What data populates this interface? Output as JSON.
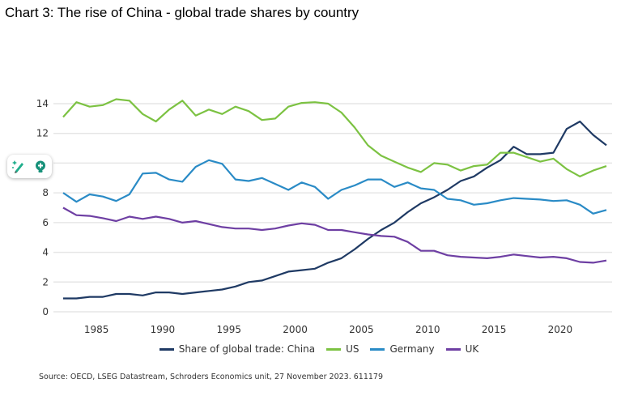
{
  "title": "Chart 3: The rise of China - global trade shares by country",
  "source": "Source: OECD, LSEG Datastream, Schroders Economics unit, 27 November 2023. 611179",
  "widget": {
    "icons": [
      "magic-pencil-icon",
      "lightbulb-icon"
    ]
  },
  "chart_data": {
    "type": "line",
    "title": "Chart 3: The rise of China - global trade shares by country",
    "xlabel": "",
    "ylabel": "",
    "xlim": [
      1982,
      2023
    ],
    "ylim": [
      0,
      14
    ],
    "x_ticks": [
      "1985",
      "1990",
      "1995",
      "2000",
      "2005",
      "2010",
      "2015",
      "2020"
    ],
    "y_ticks": [
      "0",
      "2",
      "4",
      "6",
      "8",
      "10",
      "12",
      "14"
    ],
    "grid": "horizontal",
    "legend_position": "bottom",
    "x_start": 1982,
    "series": [
      {
        "name": "Share of global trade: China",
        "color": "#1f3a64",
        "values": [
          0.9,
          0.9,
          1.0,
          1.0,
          1.2,
          1.2,
          1.1,
          1.3,
          1.3,
          1.2,
          1.3,
          1.4,
          1.5,
          1.7,
          2.0,
          2.1,
          2.4,
          2.7,
          2.8,
          2.9,
          3.3,
          3.6,
          4.2,
          4.9,
          5.5,
          6.0,
          6.7,
          7.3,
          7.7,
          8.2,
          8.8,
          9.1,
          9.7,
          10.2,
          11.1,
          10.6,
          10.6,
          10.7,
          12.3,
          12.8,
          11.9,
          11.2
        ]
      },
      {
        "name": "US",
        "color": "#7cc242",
        "values": [
          13.1,
          14.1,
          13.8,
          13.9,
          14.3,
          14.2,
          13.3,
          12.8,
          13.6,
          14.2,
          13.2,
          13.6,
          13.3,
          13.8,
          13.5,
          12.9,
          13.0,
          13.8,
          14.05,
          14.1,
          14.0,
          13.4,
          12.4,
          11.2,
          10.5,
          10.1,
          9.7,
          9.4,
          10.0,
          9.9,
          9.5,
          9.8,
          9.9,
          10.7,
          10.7,
          10.4,
          10.1,
          10.3,
          9.6,
          9.1,
          9.5,
          9.8
        ]
      },
      {
        "name": "Germany",
        "color": "#2a8bc6",
        "values": [
          8.0,
          7.4,
          7.9,
          7.75,
          7.45,
          7.9,
          9.3,
          9.35,
          8.9,
          8.75,
          9.75,
          10.2,
          9.95,
          8.9,
          8.8,
          9.0,
          8.6,
          8.2,
          8.7,
          8.4,
          7.6,
          8.2,
          8.5,
          8.9,
          8.9,
          8.4,
          8.7,
          8.3,
          8.2,
          7.6,
          7.5,
          7.2,
          7.3,
          7.5,
          7.65,
          7.6,
          7.55,
          7.45,
          7.5,
          7.2,
          6.6,
          6.85
        ]
      },
      {
        "name": "UK",
        "color": "#6e3fa3",
        "values": [
          7.0,
          6.5,
          6.45,
          6.3,
          6.1,
          6.4,
          6.25,
          6.4,
          6.25,
          6.0,
          6.1,
          5.9,
          5.7,
          5.6,
          5.6,
          5.5,
          5.6,
          5.8,
          5.95,
          5.85,
          5.5,
          5.5,
          5.35,
          5.2,
          5.1,
          5.05,
          4.7,
          4.1,
          4.1,
          3.8,
          3.7,
          3.65,
          3.6,
          3.7,
          3.85,
          3.75,
          3.65,
          3.7,
          3.6,
          3.35,
          3.3,
          3.45
        ]
      }
    ]
  }
}
